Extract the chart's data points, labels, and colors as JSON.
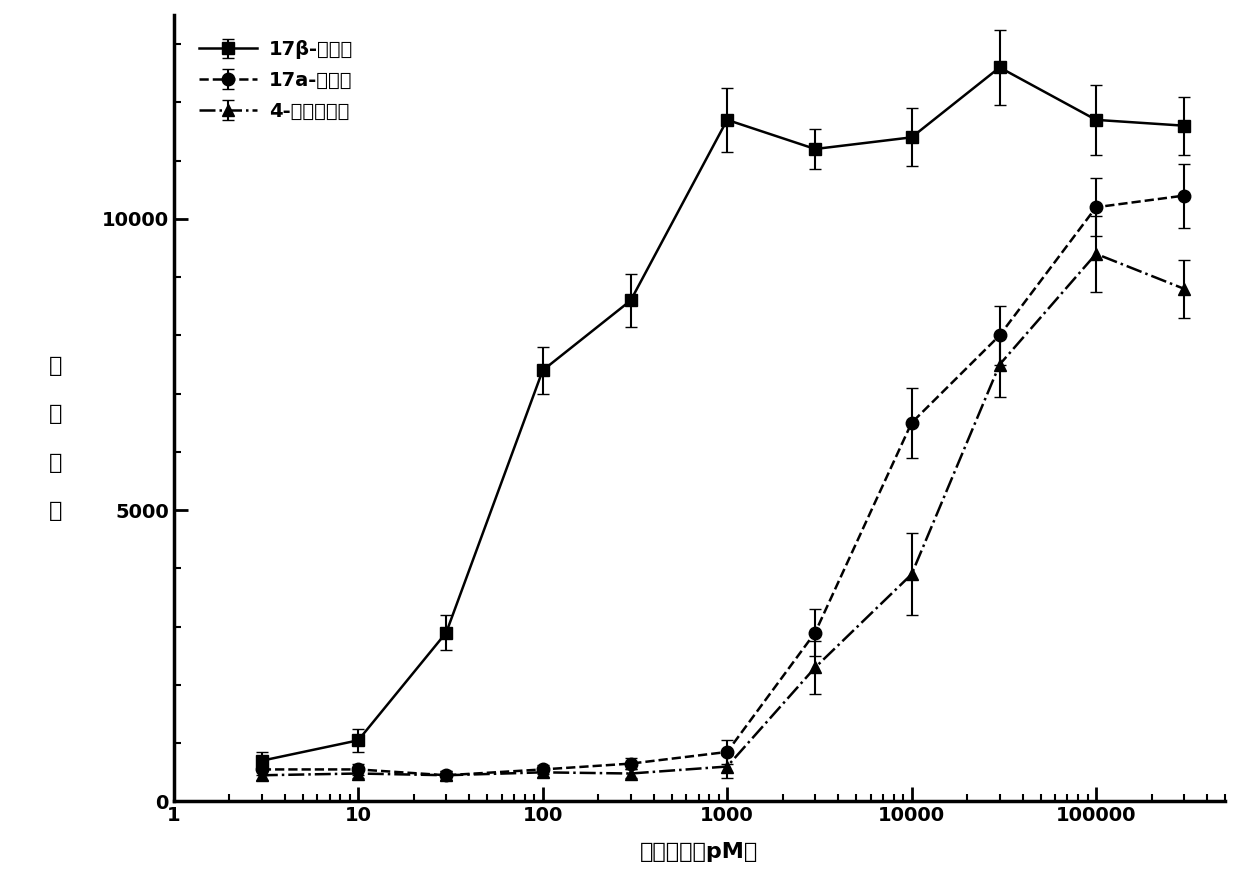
{
  "xlabel": "底物浓度（pM）",
  "ylabel_chars": [
    "荧",
    "光",
    "强",
    "度"
  ],
  "xlim_left": 1,
  "xlim_right": 500000,
  "ylim_bottom": 0,
  "ylim_top": 13500,
  "background_color": "#ffffff",
  "series": [
    {
      "label": "17β-雌二醇",
      "linestyle": "-",
      "marker": "s",
      "x": [
        3,
        10,
        30,
        100,
        300,
        1000,
        3000,
        10000,
        30000,
        100000,
        300000
      ],
      "y": [
        700,
        1050,
        2900,
        7400,
        8600,
        11700,
        11200,
        11400,
        12600,
        11700,
        11600
      ],
      "yerr": [
        150,
        200,
        300,
        400,
        450,
        550,
        350,
        500,
        650,
        600,
        500
      ]
    },
    {
      "label": "17a-雌二醇",
      "linestyle": "--",
      "marker": "o",
      "x": [
        3,
        10,
        30,
        100,
        300,
        1000,
        3000,
        10000,
        30000,
        100000,
        300000
      ],
      "y": [
        550,
        550,
        450,
        550,
        650,
        850,
        2900,
        6500,
        8000,
        10200,
        10400
      ],
      "yerr": [
        100,
        100,
        80,
        80,
        100,
        200,
        400,
        600,
        500,
        500,
        550
      ]
    },
    {
      "label": "4-辟基雌二醇",
      "linestyle": "-.",
      "marker": "^",
      "x": [
        3,
        10,
        30,
        100,
        300,
        1000,
        3000,
        10000,
        30000,
        100000,
        300000
      ],
      "y": [
        450,
        480,
        450,
        500,
        480,
        600,
        2300,
        3900,
        7500,
        9400,
        8800
      ],
      "yerr": [
        80,
        80,
        80,
        80,
        80,
        200,
        450,
        700,
        550,
        650,
        500
      ]
    }
  ],
  "yticks": [
    0,
    5000,
    10000
  ],
  "markersize": 9,
  "linewidth": 1.8,
  "elinewidth": 1.5,
  "capsize": 4,
  "color": "#000000",
  "legend_fontsize": 14,
  "axis_fontsize": 16,
  "tick_fontsize": 14
}
